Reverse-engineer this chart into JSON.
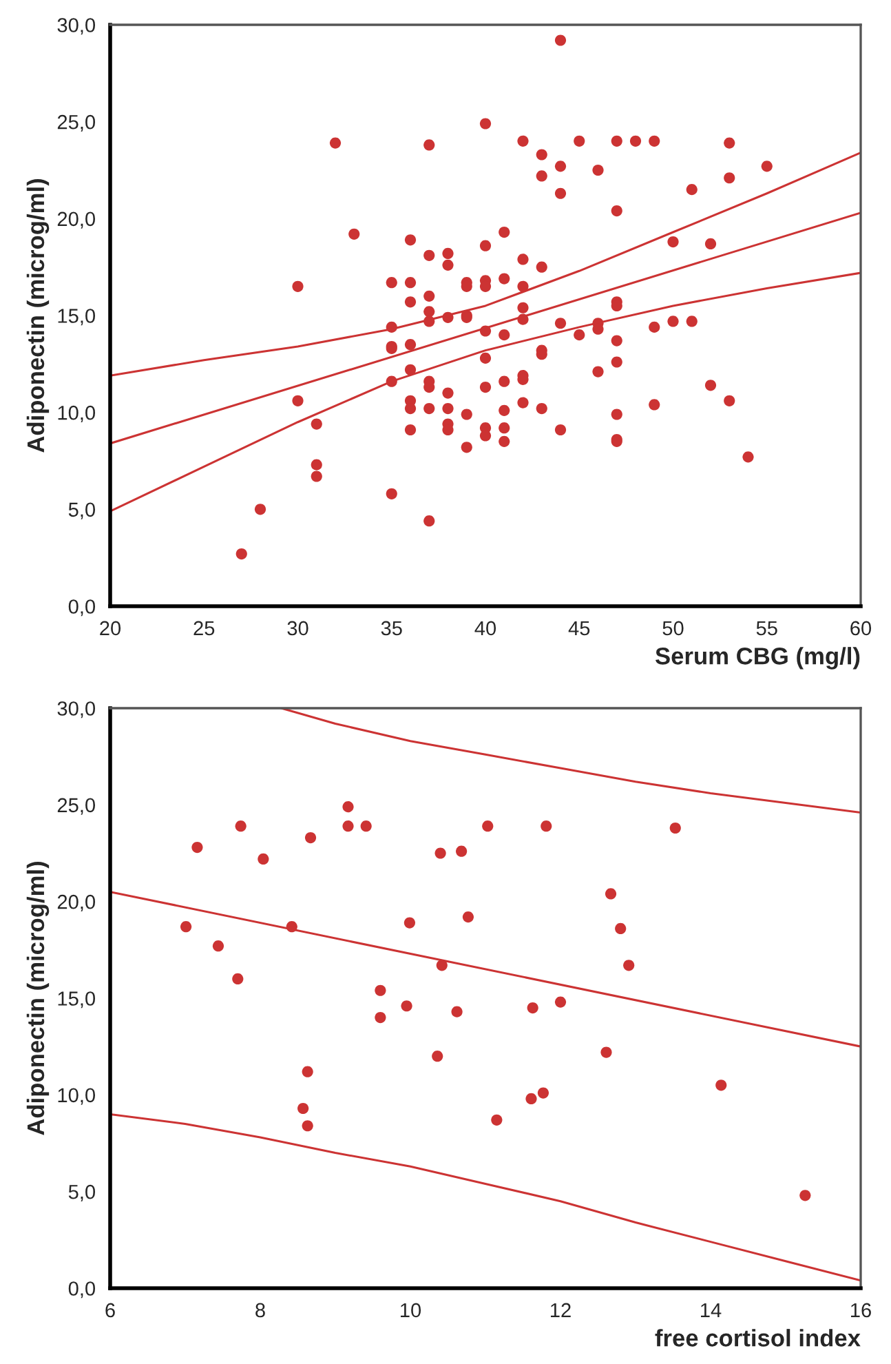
{
  "chart_data": [
    {
      "type": "scatter",
      "xlabel": "Serum CBG (mg/l)",
      "ylabel": "Adiponectin (microg/ml)",
      "xlim": [
        20,
        60
      ],
      "ylim": [
        0,
        30
      ],
      "xticks": [
        20,
        25,
        30,
        35,
        40,
        45,
        50,
        55,
        60
      ],
      "yticks": [
        {
          "value": 0,
          "label": "0,0"
        },
        {
          "value": 5,
          "label": "5,0"
        },
        {
          "value": 10,
          "label": "10,0"
        },
        {
          "value": 15,
          "label": "15,0"
        },
        {
          "value": 20,
          "label": "20,0"
        },
        {
          "value": 25,
          "label": "25,0"
        },
        {
          "value": 30,
          "label": "30,0"
        }
      ],
      "series": [
        {
          "marker": "circle",
          "color": "#cc3333",
          "x": [
            27,
            28,
            30,
            30,
            31,
            31,
            31,
            32,
            33,
            35,
            35,
            35,
            35,
            35,
            35,
            36,
            36,
            36,
            36,
            36,
            36,
            36,
            36,
            37,
            37,
            37,
            37,
            37,
            37,
            37,
            37,
            37,
            38,
            38,
            38,
            38,
            38,
            38,
            38,
            39,
            39,
            39,
            39,
            39,
            39,
            40,
            40,
            40,
            40,
            40,
            40,
            40,
            40,
            40,
            41,
            41,
            41,
            41,
            41,
            41,
            41,
            42,
            42,
            42,
            42,
            42,
            42,
            42,
            42,
            43,
            43,
            43,
            43,
            43,
            43,
            44,
            44,
            44,
            44,
            44,
            45,
            45,
            46,
            46,
            46,
            46,
            47,
            47,
            47,
            47,
            47,
            47,
            47,
            47,
            47,
            48,
            49,
            49,
            49,
            50,
            50,
            51,
            51,
            52,
            52,
            53,
            53,
            53,
            54,
            55
          ],
          "values": [
            2.7,
            5.0,
            16.5,
            10.6,
            9.4,
            7.3,
            6.7,
            23.9,
            19.2,
            16.7,
            14.4,
            13.4,
            13.3,
            11.6,
            5.8,
            18.9,
            16.7,
            15.7,
            13.5,
            12.2,
            10.6,
            10.2,
            9.1,
            23.8,
            18.1,
            16.0,
            15.2,
            14.7,
            11.6,
            11.3,
            10.2,
            4.4,
            18.2,
            17.6,
            14.9,
            11.0,
            10.2,
            9.4,
            9.1,
            16.7,
            16.5,
            15.0,
            14.9,
            9.9,
            8.2,
            24.9,
            18.6,
            16.8,
            16.5,
            14.2,
            12.8,
            11.3,
            9.2,
            8.8,
            19.3,
            16.9,
            14.0,
            11.6,
            10.1,
            9.2,
            8.5,
            24.0,
            17.9,
            16.5,
            15.4,
            14.8,
            11.9,
            11.7,
            10.5,
            23.3,
            22.2,
            17.5,
            13.2,
            13.0,
            10.2,
            29.2,
            22.7,
            21.3,
            14.6,
            9.1,
            24.0,
            14.0,
            22.5,
            14.6,
            14.3,
            12.1,
            24.0,
            20.4,
            15.7,
            15.5,
            13.7,
            12.6,
            9.9,
            8.6,
            8.5,
            24.0,
            24.0,
            14.4,
            10.4,
            18.8,
            14.7,
            21.5,
            14.7,
            18.7,
            11.4,
            23.9,
            22.1,
            10.6,
            7.7,
            22.7
          ]
        },
        {
          "type": "line",
          "color": "#cc3333",
          "x": [
            20,
            60
          ],
          "values": [
            8.4,
            20.3
          ]
        },
        {
          "type": "line",
          "color": "#cc3333",
          "x": [
            20,
            25,
            30,
            35,
            40,
            45,
            50,
            55,
            60
          ],
          "values": [
            11.9,
            12.7,
            13.4,
            14.3,
            15.5,
            17.3,
            19.3,
            21.3,
            23.4
          ]
        },
        {
          "type": "line",
          "color": "#cc3333",
          "x": [
            20,
            25,
            30,
            35,
            40,
            45,
            50,
            55,
            60
          ],
          "values": [
            4.9,
            7.2,
            9.5,
            11.6,
            13.2,
            14.4,
            15.5,
            16.4,
            17.2
          ]
        }
      ]
    },
    {
      "type": "scatter",
      "xlabel": "free cortisol index",
      "ylabel": "Adiponectin (microg/ml)",
      "xlim": [
        6,
        16
      ],
      "ylim": [
        0,
        30
      ],
      "xticks": [
        6,
        8,
        10,
        12,
        14,
        16
      ],
      "yticks": [
        {
          "value": 0,
          "label": "0,0"
        },
        {
          "value": 5,
          "label": "5,0"
        },
        {
          "value": 10,
          "label": "10,0"
        },
        {
          "value": 15,
          "label": "15,0"
        },
        {
          "value": 20,
          "label": "20,0"
        },
        {
          "value": 25,
          "label": "25,0"
        },
        {
          "value": 30,
          "label": "30,0"
        }
      ],
      "series": [
        {
          "marker": "circle",
          "color": "#cc3333",
          "x": [
            7.01,
            7.16,
            7.44,
            7.74,
            7.7,
            8.04,
            8.42,
            8.63,
            8.57,
            8.63,
            8.67,
            9.17,
            9.17,
            9.41,
            9.6,
            9.6,
            9.95,
            9.99,
            10.36,
            10.4,
            10.42,
            10.62,
            10.68,
            10.77,
            11.03,
            11.15,
            11.81,
            11.63,
            12.0,
            11.61,
            11.77,
            12.61,
            12.67,
            12.8,
            12.91,
            13.53,
            14.14,
            15.26
          ],
          "values": [
            18.7,
            22.8,
            17.7,
            23.9,
            16.0,
            22.2,
            18.7,
            11.2,
            9.3,
            8.4,
            23.3,
            24.9,
            23.9,
            23.9,
            15.4,
            14.0,
            14.6,
            18.9,
            12.0,
            22.5,
            16.7,
            14.3,
            22.6,
            19.2,
            23.9,
            8.7,
            23.9,
            14.5,
            14.8,
            9.8,
            10.1,
            12.2,
            20.4,
            18.6,
            16.7,
            23.8,
            10.5,
            4.8
          ]
        },
        {
          "type": "line",
          "color": "#cc3333",
          "x": [
            6,
            16
          ],
          "values": [
            20.5,
            12.5
          ]
        },
        {
          "type": "line",
          "color": "#cc3333",
          "x": [
            8.28,
            9,
            10,
            11,
            12,
            13,
            14,
            15,
            16
          ],
          "values": [
            30.0,
            29.2,
            28.3,
            27.6,
            26.9,
            26.2,
            25.6,
            25.1,
            24.6
          ]
        },
        {
          "type": "line",
          "color": "#cc3333",
          "x": [
            6,
            7,
            8,
            9,
            10,
            11,
            12,
            13,
            14,
            15,
            16
          ],
          "values": [
            9.0,
            8.5,
            7.8,
            7.0,
            6.3,
            5.4,
            4.5,
            3.4,
            2.4,
            1.4,
            0.4
          ]
        }
      ]
    }
  ]
}
